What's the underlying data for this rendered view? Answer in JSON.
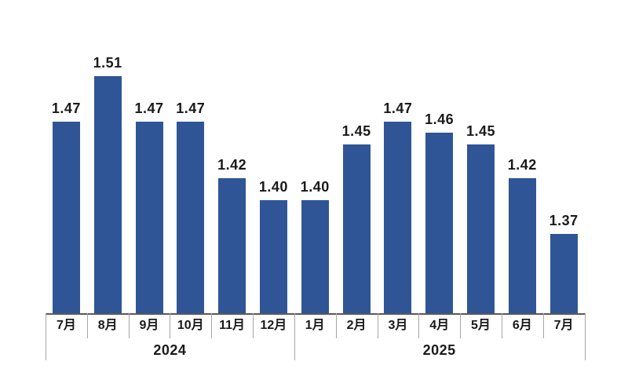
{
  "chart_data": {
    "type": "bar",
    "title": "",
    "xlabel": "",
    "ylabel": "",
    "categories": [
      "7月",
      "8月",
      "9月",
      "10月",
      "11月",
      "12月",
      "1月",
      "2月",
      "3月",
      "4月",
      "5月",
      "6月",
      "7月"
    ],
    "values": [
      1.47,
      1.51,
      1.47,
      1.47,
      1.42,
      1.4,
      1.4,
      1.45,
      1.47,
      1.46,
      1.45,
      1.42,
      1.37
    ],
    "data_labels": [
      "1.47",
      "1.51",
      "1.47",
      "1.47",
      "1.42",
      "1.40",
      "1.40",
      "1.45",
      "1.47",
      "1.46",
      "1.45",
      "1.42",
      "1.37"
    ],
    "year_groups": [
      {
        "label": "2024",
        "start": 0,
        "count": 6
      },
      {
        "label": "2025",
        "start": 6,
        "count": 7
      }
    ],
    "ylim": [
      1.3,
      1.55
    ],
    "grid": false,
    "legend": false,
    "data_labels_visible": true
  },
  "colors": {
    "bar": "#2F5597",
    "axis_line": "#595959",
    "tick_line": "#A6A6A6",
    "label_text": "#1A1A1A",
    "background": "#FFFFFF"
  }
}
